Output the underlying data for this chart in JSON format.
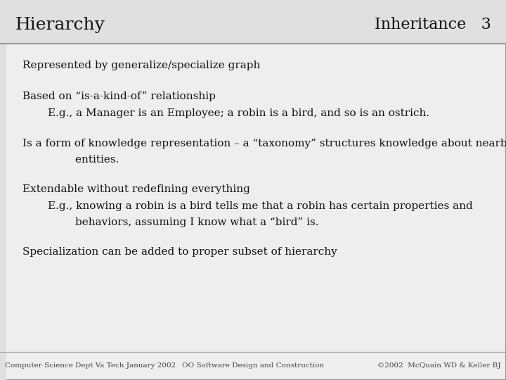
{
  "title_left": "Hierarchy",
  "title_right": "Inheritance   3",
  "bg_color": "#e0e0e0",
  "content_bg": "#eeeeee",
  "border_color": "#999999",
  "title_fontsize": 18,
  "body_fontsize": 11,
  "footer_fontsize": 7.5,
  "footer_left": "Computer Science Dept Va Tech January 2002",
  "footer_center": "OO Software Design and Construction",
  "footer_right": "©2002  McQuain WD & Keller BJ",
  "bullet1": "Represented by generalize/specialize graph",
  "bullet2_main": "Based on “is-a-kind-of” relationship",
  "bullet2_sub": "E.g., a Manager is an Employee; a robin is a bird, and so is an ostrich.",
  "bullet3_main": "Is a form of knowledge representation – a “taxonomy” structures knowledge about nearby",
  "bullet3_sub": "        entities.",
  "bullet4_main": "Extendable without redefining everything",
  "bullet4_sub1": "E.g., knowing a robin is a bird tells me that a robin has certain properties and",
  "bullet4_sub2": "        behaviors, assuming I know what a “bird” is.",
  "bullet5": "Specialization can be added to proper subset of hierarchy"
}
